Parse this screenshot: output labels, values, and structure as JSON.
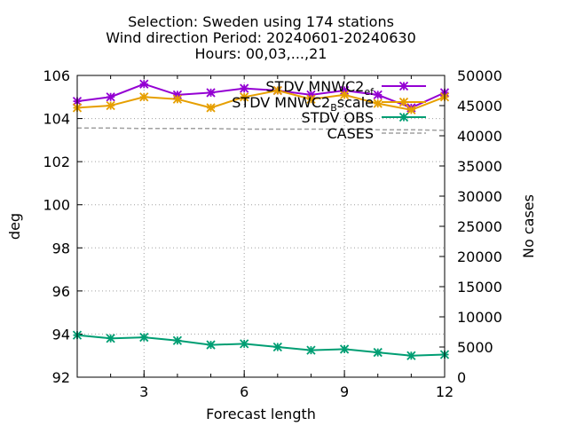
{
  "title": {
    "line1": "Selection: Sweden using   174 stations",
    "line2": "Wind direction   Period: 20240601-20240630",
    "line3": "Hours: 00,03,...,21"
  },
  "chart_data": {
    "type": "line",
    "xlabel": "Forecast length",
    "ylabel": "deg",
    "y2label": "No cases",
    "xlim": [
      1,
      12
    ],
    "ylim": [
      92,
      106
    ],
    "y2lim": [
      0,
      50000
    ],
    "xticks": [
      3,
      6,
      9,
      12
    ],
    "yticks": [
      92,
      94,
      96,
      98,
      100,
      102,
      104,
      106
    ],
    "y2ticks": [
      0,
      5000,
      10000,
      15000,
      20000,
      25000,
      30000,
      35000,
      40000,
      45000,
      50000
    ],
    "grid": true,
    "legend_position": "top-right",
    "x": [
      1,
      2,
      3,
      4,
      5,
      6,
      7,
      8,
      9,
      10,
      11,
      12
    ],
    "series": [
      {
        "name": "STDV MNWC2_ef",
        "label_main": "STDV MNWC2",
        "label_sub": "ef",
        "axis": "y1",
        "color": "#9400d3",
        "marker": "star",
        "values": [
          104.8,
          105.0,
          105.6,
          105.1,
          105.2,
          105.4,
          105.3,
          105.1,
          105.3,
          105.1,
          104.5,
          105.2
        ]
      },
      {
        "name": "STDV MNWC2_Bscale",
        "label_main": "STDV MNWC2",
        "label_sub": "B",
        "label_tail": "scale",
        "axis": "y1",
        "color": "#e69f00",
        "marker": "star",
        "values": [
          104.5,
          104.6,
          105.0,
          104.9,
          104.5,
          105.0,
          105.3,
          104.9,
          105.1,
          104.7,
          104.4,
          105.0
        ]
      },
      {
        "name": "STDV OBS",
        "label_main": "STDV OBS",
        "axis": "y1",
        "color": "#009e73",
        "marker": "star",
        "values": [
          93.95,
          93.8,
          93.85,
          93.7,
          93.5,
          93.55,
          93.4,
          93.25,
          93.3,
          93.15,
          93.0,
          93.05
        ]
      },
      {
        "name": "CASES",
        "label_main": "CASES",
        "axis": "y2",
        "color": "#a0a0a0",
        "dashed": true,
        "values": [
          41300,
          41300,
          41200,
          41200,
          41200,
          41100,
          41100,
          41100,
          41100,
          41000,
          41000,
          40900
        ]
      }
    ]
  }
}
